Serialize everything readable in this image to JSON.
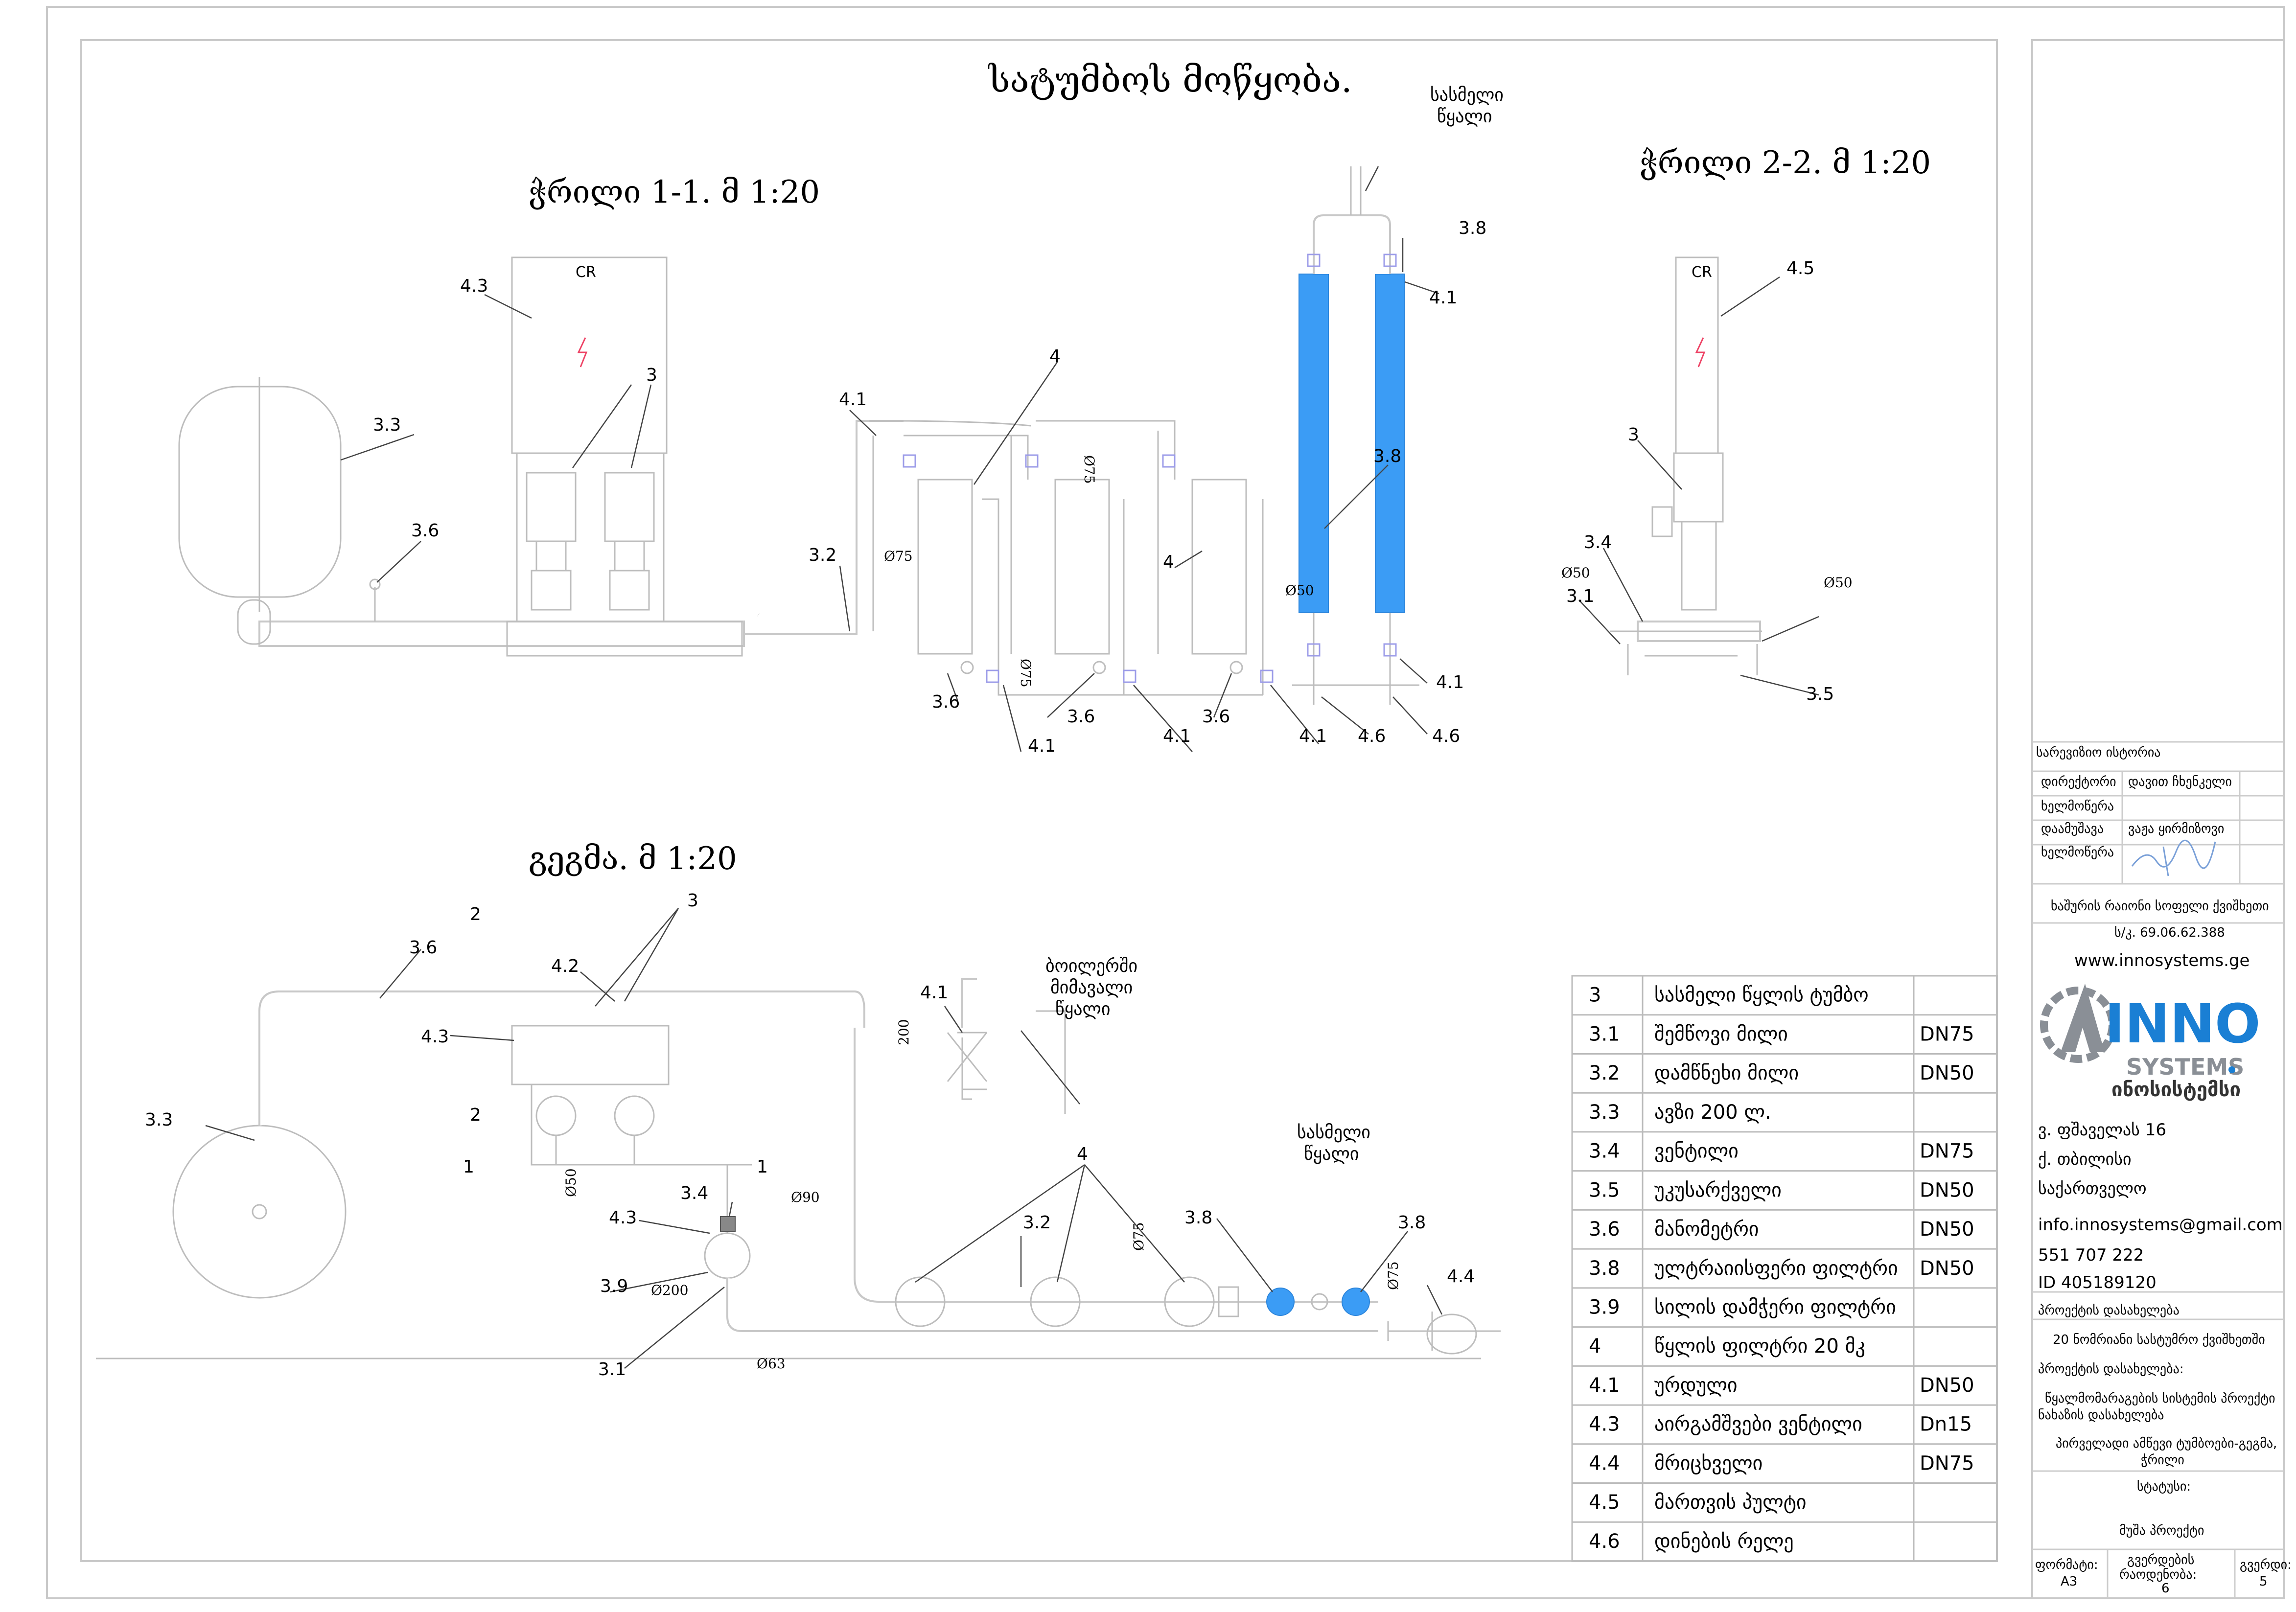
{
  "titles": {
    "main": "სატუმბოს მოწყობა.",
    "section_1_1": "ჭრილი 1-1. მ 1:20",
    "section_2_2": "ჭრილი 2-2. მ 1:20",
    "plan": "გეგმა. მ 1:20"
  },
  "callouts": {
    "drinking_water": "სასმელი\nწყალი",
    "boiler_water": "ბოილერში\nმიმავალი\nწყალი",
    "drinking_water_2": "სასმელი\nწყალი"
  },
  "labels_1_1": [
    "4.3",
    "3",
    "3.3",
    "3.6",
    "4.1",
    "4",
    "3.2",
    "Ø75",
    "Ø75",
    "4",
    "Ø75",
    "3.6",
    "3.6",
    "3.6",
    "4.1",
    "4.1",
    "4.1",
    "3.8",
    "3.8",
    "4.1",
    "Ø50",
    "4.6",
    "4.6",
    "4.1"
  ],
  "labels_2_2": [
    "4.5",
    "3",
    "3.4",
    "Ø50",
    "3.1",
    "Ø50",
    "3.5"
  ],
  "labels_plan": [
    "2",
    "3",
    "3.6",
    "4.2",
    "4.3",
    "3.3",
    "2",
    "1",
    "1",
    "Ø50",
    "3.4",
    "4.3",
    "Ø90",
    "3.9",
    "Ø200",
    "3.1",
    "Ø63",
    "4.1",
    "200",
    "4",
    "3.2",
    "Ø75",
    "3.8",
    "3.8",
    "Ø75",
    "4.4"
  ],
  "spec_table": [
    {
      "num": "3",
      "name": "სასმელი წყლის ტუმბო",
      "size": ""
    },
    {
      "num": "3.1",
      "name": "შემწოვი მილი",
      "size": "DN75"
    },
    {
      "num": "3.2",
      "name": "დამწნეხი მილი",
      "size": "DN50"
    },
    {
      "num": "3.3",
      "name": "ავზი 200 ლ.",
      "size": ""
    },
    {
      "num": "3.4",
      "name": "ვენტილი",
      "size": "DN75"
    },
    {
      "num": "3.5",
      "name": "უკუსარქველი",
      "size": "DN50"
    },
    {
      "num": "3.6",
      "name": "მანომეტრი",
      "size": "DN50"
    },
    {
      "num": "3.8",
      "name": "ულტრაიისფერი ფილტრი",
      "size": "DN50"
    },
    {
      "num": "3.9",
      "name": "სილის დამჭერი ფილტრი",
      "size": ""
    },
    {
      "num": "4",
      "name": "წყლის ფილტრი 20 მკ",
      "size": ""
    },
    {
      "num": "4.1",
      "name": "ურდული",
      "size": "DN50"
    },
    {
      "num": "4.3",
      "name": "აირგამშვები ვენტილი",
      "size": "Dn15"
    },
    {
      "num": "4.4",
      "name": "მრიცხველი",
      "size": "DN75"
    },
    {
      "num": "4.5",
      "name": "მართვის პულტი",
      "size": ""
    },
    {
      "num": "4.6",
      "name": "დინების რელე",
      "size": ""
    }
  ],
  "title_block": {
    "revision_history": "სარევიზიო ისტორია",
    "director_label": "დირექტორი",
    "director_name": "დავით ჩხენკელი",
    "signature_label_1": "ხელმოწერა",
    "developer_label": "დაამუშავა",
    "developer_name": "ვაჟა ყირმიზოვი",
    "signature_label_2": "ხელმოწერა",
    "address_label": "ხაშურის რაიონი სოფელი ქვიშხეთი",
    "cadastre": "ს/კ. 69.06.62.388",
    "website": "www.innosystems.ge",
    "logo_text_main": "INNO",
    "logo_text_sub": "SYSTEMS",
    "logo_text_geo": "ინოსისტემსი",
    "street": "ვ. ფშაველას 16",
    "city": "ქ. თბილისი",
    "country": "საქართველო",
    "email": "info.innosystems@gmail.com",
    "phone": "551 707 222",
    "id": "ID 405189120",
    "project_name_label": "პროექტის დასახელება",
    "project_name": "20 ნომრიანი სასტუმრო ქვიშხეთში",
    "project_title_label": "პროექტის დასახელება:",
    "project_title_1": "წყალმომარაგების სისტემის პროექტი",
    "project_title_2": "ნახაზის დასახელება",
    "drawing_title_1": "პირველადი ამწევი ტუმბოები-გეგმა,",
    "drawing_title_2": "ჭრილი",
    "status_label": "სტატუსი:",
    "status_value": "მუშა პროექტი",
    "format_label": "ფორმატი:",
    "format_value": "A3",
    "pages_count_label": "გვერდების",
    "pages_count_label_2": "რაოდენობა:",
    "pages_count_value": "6",
    "page_label": "გვერდი:",
    "page_value": "5"
  },
  "colors": {
    "uv_filter": "#3b9cf5",
    "logo_blue": "#1a7fd4",
    "logo_grey": "#8a8f96"
  }
}
